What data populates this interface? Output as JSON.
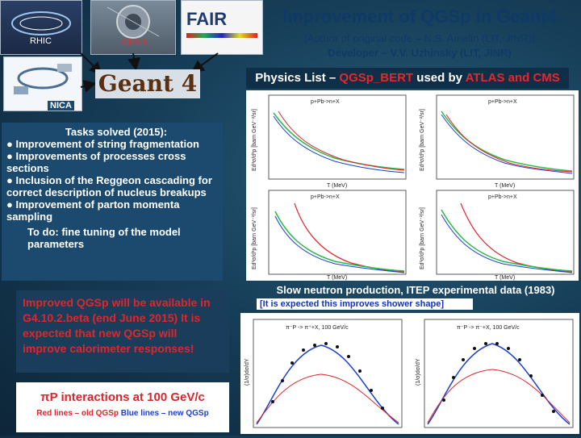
{
  "header": {
    "title": "Improvement of QGSp in Geant4",
    "author": "[Author of original code – N.S. Amelin (LIT, JINR)]",
    "developer": "Developer – V.V. Uzhinsky (LIT, JINR)"
  },
  "logos": {
    "rhic": "RHIC",
    "cern": "CERN",
    "fair": "FAIR",
    "nica": "NICA",
    "geant4": "Geant 4"
  },
  "physics_list": {
    "prefix": "Physics List – ",
    "model": "QGSp_BERT",
    "middle": " used by ",
    "experiments": "ATLAS and CMS"
  },
  "tasks": {
    "heading": "Tasks solved (2015):",
    "items": [
      "● Improvement of string fragmentation",
      "● Improvements of processes cross sections",
      "● Inclusion of the Reggeon cascading for correct description of nucleus breakups",
      "● Improvement of parton momenta sampling"
    ],
    "todo": "To do: fine tuning of the model parameters"
  },
  "improved": "Improved QGSp will be available in G4.10.2.beta (end June 2015) It is expected that new QGSp will improve calorimeter responses!",
  "pip": {
    "title": "πP interactions at 100 GeV/c",
    "red": "Red lines – old QGSp",
    "blue": "Blue lines – new QGSp"
  },
  "slow_neutron": "Slow neutron production, ITEP experimental data (1983)",
  "expected_note": "[It is expected this improves shower shape]",
  "neutron_plots": {
    "ylabel": "Ed³σ/d³p [barn GeV⁻²/sr]",
    "xlabel": "T (MeV)",
    "panels": [
      {
        "reaction": "p+Pb->n+X"
      },
      {
        "reaction": "p+Pb->n+X"
      },
      {
        "reaction": "p+Pb->n+X"
      },
      {
        "reaction": "p+Pb->n+X"
      }
    ]
  },
  "pion_plots": {
    "panels": [
      {
        "reaction": "π⁻P -> π⁺+X, 100 GeV/c",
        "ylabel": "(1/σ)dσ/dY"
      },
      {
        "reaction": "π⁻P -> π⁻+X, 100 GeV/c",
        "ylabel": "(1/σ)dσ/dY"
      }
    ]
  },
  "colors": {
    "title": "#103a66",
    "red_line": "#e0262a",
    "blue_line": "#1a3fd0",
    "green_line": "#2eb84a"
  }
}
